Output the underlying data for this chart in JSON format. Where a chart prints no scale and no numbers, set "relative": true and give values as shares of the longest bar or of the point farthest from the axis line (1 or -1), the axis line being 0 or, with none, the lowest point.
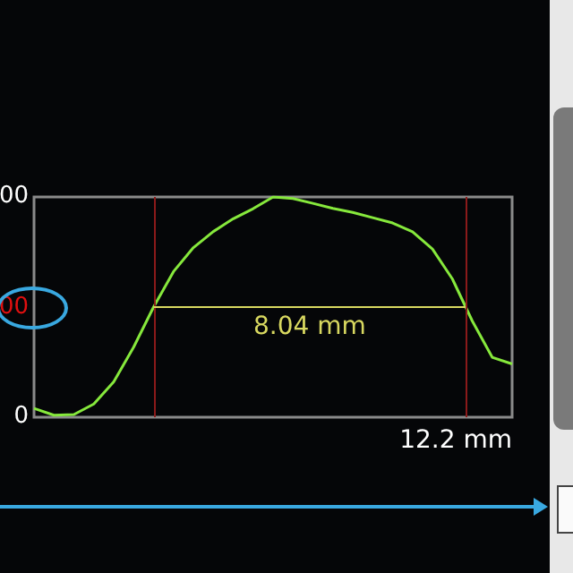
{
  "chart_data": {
    "type": "line",
    "relative": true,
    "color": "#86e83c",
    "categories": [
      null,
      null,
      null,
      null,
      null,
      null,
      null,
      null,
      null,
      null,
      null,
      null,
      null,
      null,
      null,
      null,
      null,
      null,
      null,
      null,
      null,
      null,
      null,
      null,
      null
    ],
    "values": [
      0.04,
      0.009,
      0.012,
      0.06,
      0.161,
      0.318,
      0.5,
      0.661,
      0.77,
      0.843,
      0.901,
      0.947,
      1,
      0.993,
      0.971,
      0.948,
      0.93,
      0.906,
      0.882,
      0.842,
      0.764,
      0.628,
      0.437,
      0.272,
      0.242
    ],
    "ref_lines": [
      {
        "axis": "y",
        "value": 0.5,
        "label": "8.04 mm",
        "color": "#d8d860"
      }
    ],
    "annotations": [
      "0",
      "00",
      "00",
      "12.2 mm"
    ]
  }
}
